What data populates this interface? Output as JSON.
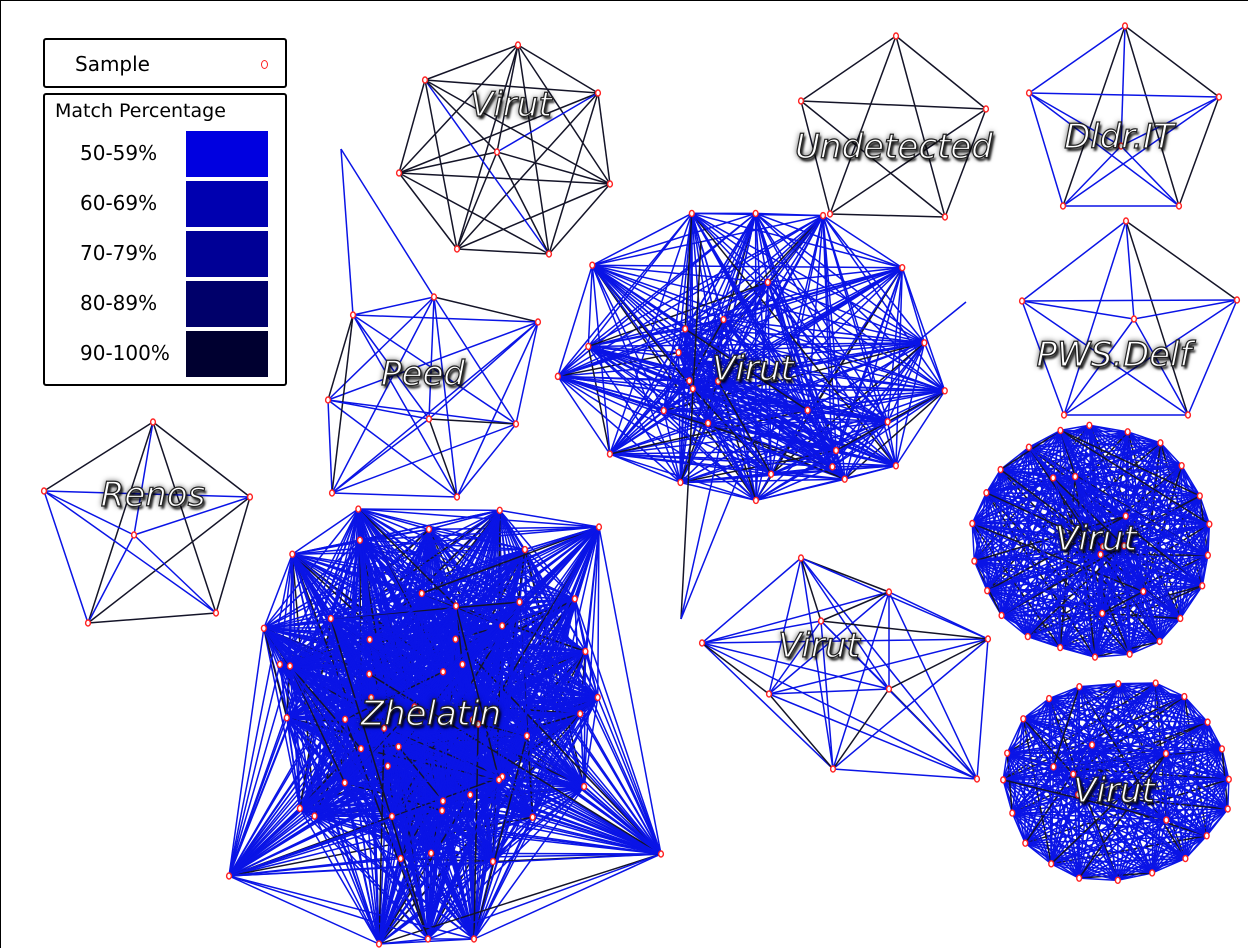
{
  "legend": {
    "sample_label": "Sample",
    "sample_color": "#ff2222",
    "match_title": "Match Percentage",
    "ranges": [
      {
        "label": "50-59%",
        "color": "#0000e0"
      },
      {
        "label": "60-69%",
        "color": "#0000b0"
      },
      {
        "label": "70-79%",
        "color": "#000096"
      },
      {
        "label": "80-89%",
        "color": "#00006a"
      },
      {
        "label": "90-100%",
        "color": "#000030"
      }
    ]
  },
  "colors": {
    "edge_low_match": "#0a14e6",
    "edge_high_match": "#141428",
    "node": "#ff2222"
  },
  "clusters": [
    {
      "name": "Virut"
    },
    {
      "name": "Undetected"
    },
    {
      "name": "Dldr.IT"
    },
    {
      "name": "PWS.Delf"
    },
    {
      "name": "Peed"
    },
    {
      "name": "Virut"
    },
    {
      "name": "Renos"
    },
    {
      "name": "Virut"
    },
    {
      "name": "Virut"
    },
    {
      "name": "Virut"
    },
    {
      "name": "Zhelatin"
    }
  ]
}
